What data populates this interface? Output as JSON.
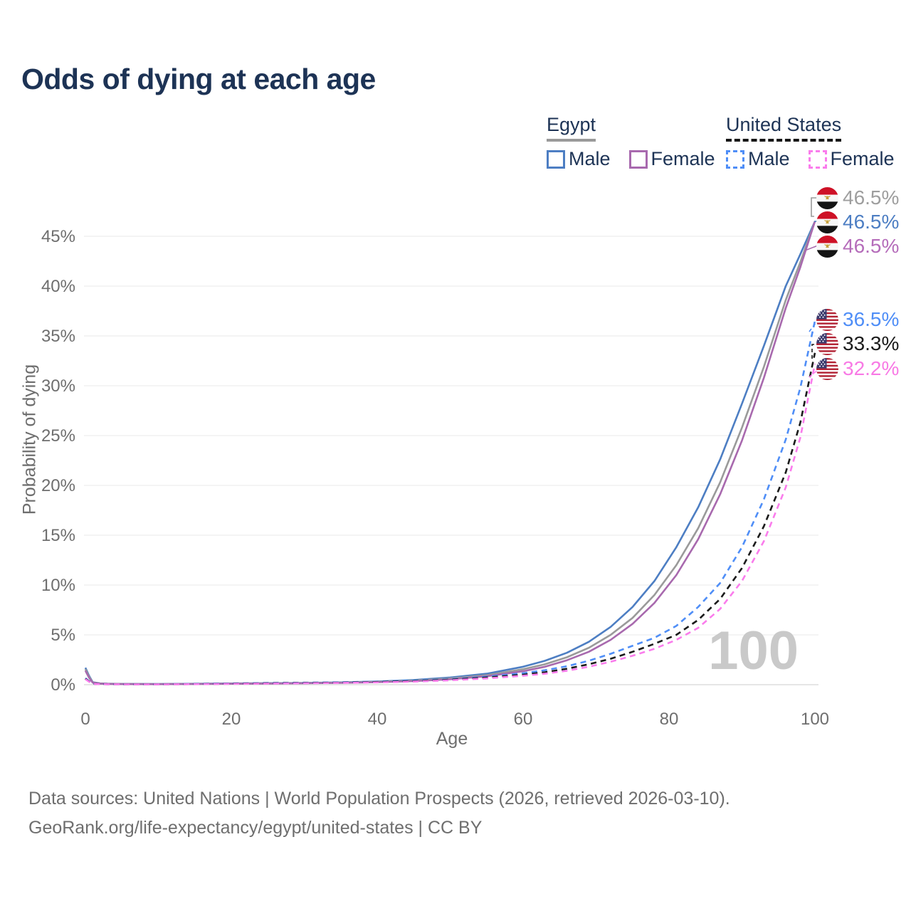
{
  "title": "Odds of dying at each age",
  "legend": {
    "egypt": {
      "name": "Egypt",
      "male": "Male",
      "female": "Female"
    },
    "us": {
      "name": "United States",
      "male": "Male",
      "female": "Female"
    }
  },
  "axes": {
    "x_title": "Age",
    "y_title": "Probability of dying"
  },
  "watermark": "100",
  "end_labels": {
    "egypt_total": "46.5%",
    "egypt_male": "46.5%",
    "egypt_female": "46.5%",
    "us_male": "36.5%",
    "us_total": "33.3%",
    "us_female": "32.2%"
  },
  "footer": {
    "line1": "Data sources: United Nations | World Population Prospects (2026, retrieved 2026-03-10).",
    "line2": "GeoRank.org/life-expectancy/egypt/united-states | CC BY"
  },
  "colors": {
    "egypt_male": "#4d7ec3",
    "egypt_total": "#9a9a9a",
    "egypt_female": "#a869ae",
    "us_male": "#4f8ef7",
    "us_total": "#1b1b1b",
    "us_female": "#fa7cec",
    "grid": "#ededed",
    "axis_text": "#6e6e6e",
    "watermark": "#c9c9c9",
    "title_text": "#1d3355"
  },
  "chart_data": {
    "type": "line",
    "title": "Odds of dying at each age",
    "xlabel": "Age",
    "ylabel": "Probability of dying",
    "xlim": [
      0,
      100
    ],
    "ylim_pct": [
      0,
      47.5
    ],
    "x_ticks": [
      0,
      20,
      40,
      60,
      80,
      100
    ],
    "y_ticks_pct": [
      0,
      5,
      10,
      15,
      20,
      25,
      30,
      35,
      40,
      45
    ],
    "y_tick_labels": [
      "0%",
      "5%",
      "10%",
      "15%",
      "20%",
      "25%",
      "30%",
      "35%",
      "40%",
      "45%"
    ],
    "grid": true,
    "ages": [
      0,
      0.5,
      1,
      2,
      3,
      5,
      10,
      15,
      20,
      25,
      30,
      35,
      40,
      45,
      50,
      55,
      60,
      63,
      66,
      69,
      72,
      75,
      78,
      81,
      84,
      87,
      90,
      93,
      96,
      98,
      100
    ],
    "series": [
      {
        "id": "egypt_male",
        "name": "Egypt Male",
        "color": "#4d7ec3",
        "dash": false,
        "end_value_pct": 46.5,
        "values_pct": [
          1.7,
          0.9,
          0.25,
          0.13,
          0.1,
          0.08,
          0.07,
          0.09,
          0.12,
          0.15,
          0.18,
          0.23,
          0.32,
          0.47,
          0.72,
          1.1,
          1.8,
          2.4,
          3.2,
          4.3,
          5.8,
          7.8,
          10.4,
          13.8,
          17.8,
          22.6,
          28.2,
          34.0,
          40.0,
          43.2,
          46.5
        ]
      },
      {
        "id": "egypt_total",
        "name": "Egypt Both sexes",
        "color": "#9a9a9a",
        "dash": false,
        "end_value_pct": 46.5,
        "values_pct": [
          1.55,
          0.8,
          0.22,
          0.12,
          0.09,
          0.07,
          0.06,
          0.08,
          0.1,
          0.13,
          0.16,
          0.2,
          0.28,
          0.41,
          0.62,
          0.95,
          1.55,
          2.05,
          2.75,
          3.7,
          5.0,
          6.7,
          9.0,
          12.0,
          15.7,
          20.3,
          25.8,
          31.9,
          38.6,
          42.4,
          46.5
        ]
      },
      {
        "id": "egypt_female",
        "name": "Egypt Female",
        "color": "#a869ae",
        "dash": false,
        "end_value_pct": 46.5,
        "values_pct": [
          1.4,
          0.7,
          0.2,
          0.1,
          0.08,
          0.06,
          0.05,
          0.07,
          0.09,
          0.11,
          0.14,
          0.18,
          0.25,
          0.36,
          0.54,
          0.84,
          1.35,
          1.8,
          2.45,
          3.3,
          4.5,
          6.1,
          8.2,
          11.0,
          14.6,
          19.1,
          24.5,
          30.8,
          37.8,
          41.9,
          46.5
        ]
      },
      {
        "id": "us_male",
        "name": "United States Male",
        "color": "#4f8ef7",
        "dash": true,
        "end_value_pct": 36.5,
        "values_pct": [
          0.65,
          0.35,
          0.1,
          0.06,
          0.05,
          0.04,
          0.04,
          0.07,
          0.13,
          0.17,
          0.2,
          0.24,
          0.3,
          0.4,
          0.55,
          0.8,
          1.15,
          1.45,
          1.85,
          2.4,
          3.1,
          3.9,
          4.7,
          5.9,
          7.8,
          10.2,
          13.8,
          18.6,
          24.6,
          29.8,
          36.5
        ]
      },
      {
        "id": "us_total",
        "name": "United States Both sexes",
        "color": "#1b1b1b",
        "dash": true,
        "end_value_pct": 33.3,
        "values_pct": [
          0.6,
          0.32,
          0.09,
          0.06,
          0.05,
          0.04,
          0.035,
          0.06,
          0.1,
          0.14,
          0.17,
          0.21,
          0.27,
          0.36,
          0.5,
          0.72,
          1.0,
          1.25,
          1.6,
          2.05,
          2.6,
          3.3,
          4.1,
          5.0,
          6.5,
          8.6,
          11.7,
          15.9,
          21.3,
          26.3,
          33.3
        ]
      },
      {
        "id": "us_female",
        "name": "United States Female",
        "color": "#fa7cec",
        "dash": true,
        "end_value_pct": 32.2,
        "values_pct": [
          0.55,
          0.3,
          0.08,
          0.05,
          0.04,
          0.035,
          0.03,
          0.05,
          0.08,
          0.11,
          0.14,
          0.18,
          0.23,
          0.31,
          0.44,
          0.63,
          0.9,
          1.1,
          1.4,
          1.8,
          2.3,
          2.9,
          3.6,
          4.5,
          5.7,
          7.6,
          10.4,
          14.4,
          19.8,
          24.8,
          32.2
        ]
      }
    ],
    "legend_position": "top-right",
    "annotations": [
      "100"
    ]
  }
}
